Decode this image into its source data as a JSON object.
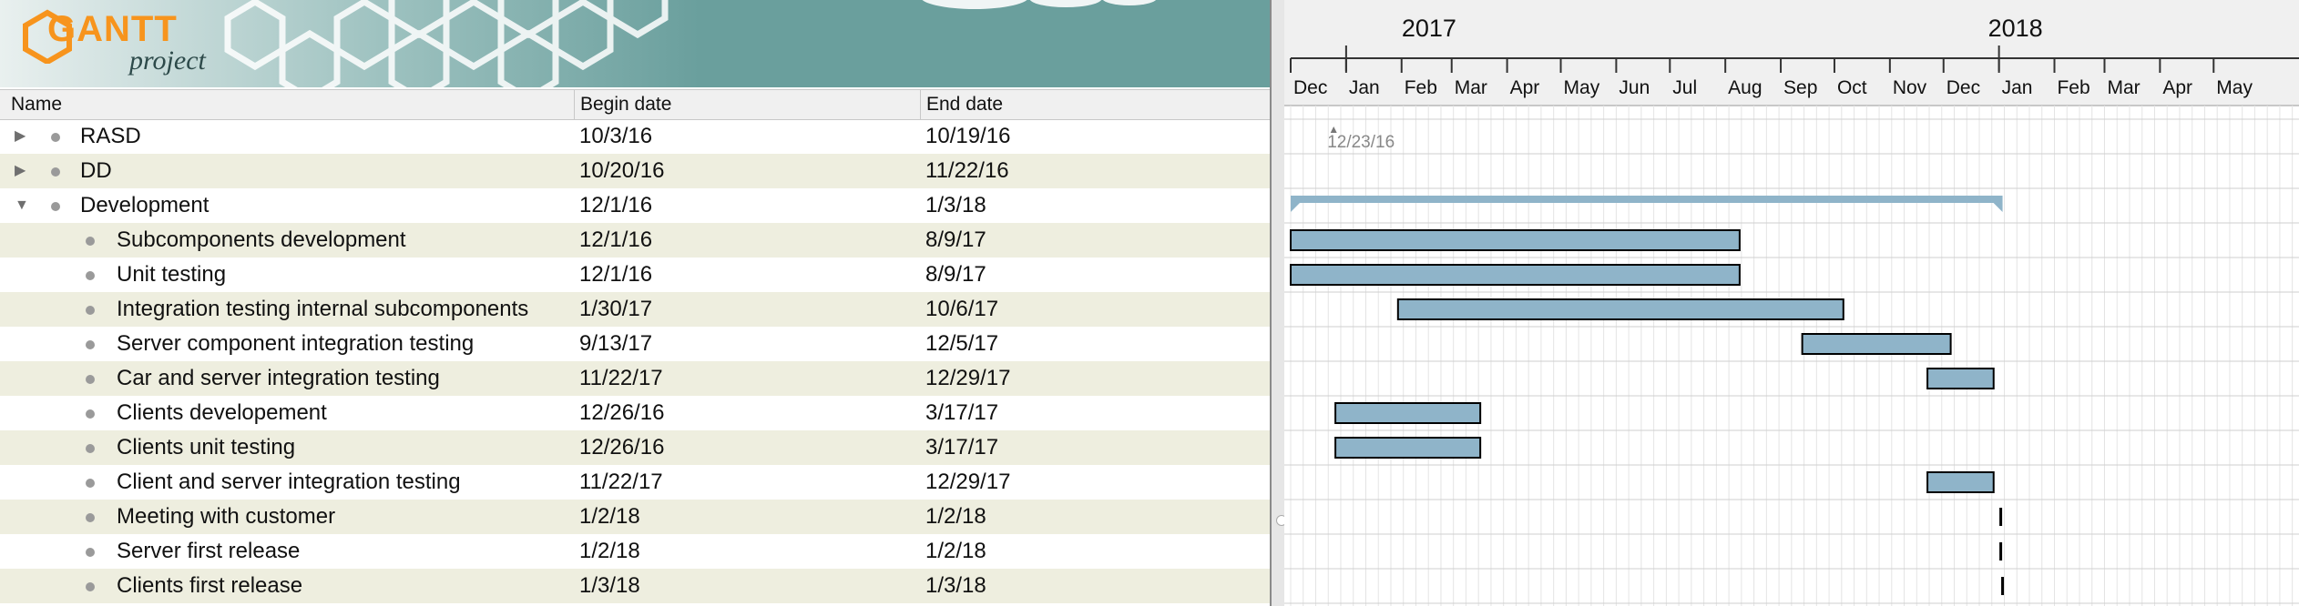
{
  "banner": {
    "logo_main": "GANTT",
    "logo_sub": "project"
  },
  "table": {
    "columns": [
      {
        "label": "Name"
      },
      {
        "label": "Begin date"
      },
      {
        "label": "End date"
      }
    ],
    "rows": [
      {
        "name": "RASD",
        "begin": "10/3/16",
        "end": "10/19/16",
        "level": 0,
        "expander": "collapsed"
      },
      {
        "name": "DD",
        "begin": "10/20/16",
        "end": "11/22/16",
        "level": 0,
        "expander": "collapsed"
      },
      {
        "name": "Development",
        "begin": "12/1/16",
        "end": "1/3/18",
        "level": 0,
        "expander": "expanded"
      },
      {
        "name": "Subcomponents development",
        "begin": "12/1/16",
        "end": "8/9/17",
        "level": 1,
        "expander": "none"
      },
      {
        "name": "Unit testing",
        "begin": "12/1/16",
        "end": "8/9/17",
        "level": 1,
        "expander": "none"
      },
      {
        "name": "Integration testing internal subcomponents",
        "begin": "1/30/17",
        "end": "10/6/17",
        "level": 1,
        "expander": "none"
      },
      {
        "name": "Server component integration testing",
        "begin": "9/13/17",
        "end": "12/5/17",
        "level": 1,
        "expander": "none"
      },
      {
        "name": "Car and server integration testing",
        "begin": "11/22/17",
        "end": "12/29/17",
        "level": 1,
        "expander": "none"
      },
      {
        "name": "Clients developement",
        "begin": "12/26/16",
        "end": "3/17/17",
        "level": 1,
        "expander": "none"
      },
      {
        "name": "Clients unit testing",
        "begin": "12/26/16",
        "end": "3/17/17",
        "level": 1,
        "expander": "none"
      },
      {
        "name": "Client and server integration testing",
        "begin": "11/22/17",
        "end": "12/29/17",
        "level": 1,
        "expander": "none"
      },
      {
        "name": "Meeting with customer",
        "begin": "1/2/18",
        "end": "1/2/18",
        "level": 1,
        "expander": "none"
      },
      {
        "name": "Server first release",
        "begin": "1/2/18",
        "end": "1/2/18",
        "level": 1,
        "expander": "none"
      },
      {
        "name": "Clients first release",
        "begin": "1/3/18",
        "end": "1/3/18",
        "level": 1,
        "expander": "none"
      }
    ]
  },
  "timeline": {
    "years": [
      {
        "label": "2017",
        "start": "2017-01-01"
      },
      {
        "label": "2018",
        "start": "2018-01-01"
      }
    ],
    "months": [
      {
        "label": "Dec",
        "start": "2016-12-01"
      },
      {
        "label": "Jan",
        "start": "2017-01-01"
      },
      {
        "label": "Feb",
        "start": "2017-02-01"
      },
      {
        "label": "Mar",
        "start": "2017-03-01"
      },
      {
        "label": "Apr",
        "start": "2017-04-01"
      },
      {
        "label": "May",
        "start": "2017-05-01"
      },
      {
        "label": "Jun",
        "start": "2017-06-01"
      },
      {
        "label": "Jul",
        "start": "2017-07-01"
      },
      {
        "label": "Aug",
        "start": "2017-08-01"
      },
      {
        "label": "Sep",
        "start": "2017-09-01"
      },
      {
        "label": "Oct",
        "start": "2017-10-01"
      },
      {
        "label": "Nov",
        "start": "2017-11-01"
      },
      {
        "label": "Dec",
        "start": "2017-12-01"
      },
      {
        "label": "Jan",
        "start": "2018-01-01"
      },
      {
        "label": "Feb",
        "start": "2018-02-01"
      },
      {
        "label": "Mar",
        "start": "2018-03-01"
      },
      {
        "label": "Apr",
        "start": "2018-04-01"
      },
      {
        "label": "May",
        "start": "2018-05-01"
      }
    ],
    "today_marker": {
      "label": "12/23/16",
      "date": "2016-12-23"
    },
    "bar_color": "#8fb4c9",
    "summary_color": "#8fb4c9",
    "tasks": [
      {
        "row": 2,
        "start": "2016-12-01",
        "end": "2018-01-03",
        "kind": "summary"
      },
      {
        "row": 3,
        "start": "2016-12-01",
        "end": "2017-08-09",
        "kind": "task"
      },
      {
        "row": 4,
        "start": "2016-12-01",
        "end": "2017-08-09",
        "kind": "task"
      },
      {
        "row": 5,
        "start": "2017-01-30",
        "end": "2017-10-06",
        "kind": "task"
      },
      {
        "row": 6,
        "start": "2017-09-13",
        "end": "2017-12-05",
        "kind": "task"
      },
      {
        "row": 7,
        "start": "2017-11-22",
        "end": "2017-12-29",
        "kind": "task"
      },
      {
        "row": 8,
        "start": "2016-12-26",
        "end": "2017-03-17",
        "kind": "task"
      },
      {
        "row": 9,
        "start": "2016-12-26",
        "end": "2017-03-17",
        "kind": "task"
      },
      {
        "row": 10,
        "start": "2017-11-22",
        "end": "2017-12-29",
        "kind": "task"
      },
      {
        "row": 11,
        "start": "2018-01-02",
        "end": "2018-01-02",
        "kind": "milestone"
      },
      {
        "row": 12,
        "start": "2018-01-02",
        "end": "2018-01-02",
        "kind": "milestone"
      },
      {
        "row": 13,
        "start": "2018-01-03",
        "end": "2018-01-03",
        "kind": "milestone"
      }
    ]
  }
}
